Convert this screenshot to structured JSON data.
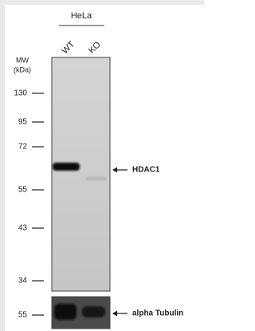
{
  "header": {
    "cell_line": "HeLa",
    "lanes": [
      "WT",
      "KO"
    ]
  },
  "mw_label": {
    "line1": "MW",
    "line2": "(kDa)"
  },
  "markers": [
    130,
    95,
    72,
    55,
    43,
    34
  ],
  "targets": [
    {
      "label": "HDAC1"
    },
    {
      "label": "alpha Tubulin",
      "marker": 55
    }
  ]
}
